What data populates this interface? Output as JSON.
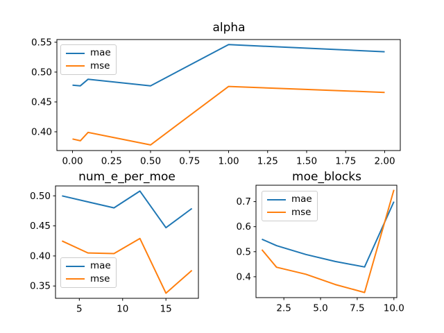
{
  "colors": {
    "mae": "#1f77b4",
    "mse": "#ff7f0e",
    "axis": "#000000",
    "legend_border": "#cccccc",
    "background": "#ffffff",
    "text": "#000000"
  },
  "chart_data": [
    {
      "id": "alpha",
      "type": "line",
      "title": "alpha",
      "x": [
        0.0,
        0.05,
        0.1,
        0.5,
        1.0,
        2.0
      ],
      "series": [
        {
          "name": "mae",
          "color": "#1f77b4",
          "values": [
            0.478,
            0.477,
            0.488,
            0.477,
            0.546,
            0.534
          ]
        },
        {
          "name": "mse",
          "color": "#ff7f0e",
          "values": [
            0.388,
            0.385,
            0.399,
            0.378,
            0.476,
            0.466
          ]
        }
      ],
      "xlim": [
        -0.1,
        2.1
      ],
      "ylim": [
        0.3686,
        0.5545
      ],
      "xticks": [
        0.0,
        0.25,
        0.5,
        0.75,
        1.0,
        1.25,
        1.5,
        1.75,
        2.0
      ],
      "xtick_labels": [
        "0.00",
        "0.25",
        "0.50",
        "0.75",
        "1.00",
        "1.25",
        "1.50",
        "1.75",
        "2.00"
      ],
      "yticks": [
        0.4,
        0.45,
        0.5,
        0.55
      ],
      "ytick_labels": [
        "0.40",
        "0.45",
        "0.50",
        "0.55"
      ],
      "legend_loc": "upper left",
      "grid": false
    },
    {
      "id": "num_e_per_moe",
      "type": "line",
      "title": "num_e_per_moe",
      "x": [
        3,
        6,
        9,
        12,
        15,
        18
      ],
      "series": [
        {
          "name": "mae",
          "color": "#1f77b4",
          "values": [
            0.5,
            0.49,
            0.48,
            0.508,
            0.447,
            0.479
          ]
        },
        {
          "name": "mse",
          "color": "#ff7f0e",
          "values": [
            0.425,
            0.405,
            0.404,
            0.429,
            0.338,
            0.376
          ]
        }
      ],
      "xlim": [
        2.25,
        18.75
      ],
      "ylim": [
        0.3295,
        0.5165
      ],
      "xticks": [
        5,
        10,
        15
      ],
      "xtick_labels": [
        "5",
        "10",
        "15"
      ],
      "yticks": [
        0.35,
        0.4,
        0.45,
        0.5
      ],
      "ytick_labels": [
        "0.35",
        "0.40",
        "0.45",
        "0.50"
      ],
      "legend_loc": "lower left",
      "grid": false
    },
    {
      "id": "moe_blocks",
      "type": "line",
      "title": "moe_blocks",
      "x": [
        1,
        2,
        4,
        6,
        8,
        10
      ],
      "series": [
        {
          "name": "mae",
          "color": "#1f77b4",
          "values": [
            0.55,
            0.524,
            0.489,
            0.461,
            0.439,
            0.7
          ]
        },
        {
          "name": "mse",
          "color": "#ff7f0e",
          "values": [
            0.508,
            0.438,
            0.41,
            0.369,
            0.337,
            0.747
          ]
        }
      ],
      "xlim": [
        0.6,
        10.2
      ],
      "ylim": [
        0.3166,
        0.7654
      ],
      "xticks": [
        2.5,
        5.0,
        7.5,
        10.0
      ],
      "xtick_labels": [
        "2.5",
        "5.0",
        "7.5",
        "10.0"
      ],
      "yticks": [
        0.4,
        0.5,
        0.6,
        0.7
      ],
      "ytick_labels": [
        "0.4",
        "0.5",
        "0.6",
        "0.7"
      ],
      "legend_loc": "upper left",
      "grid": false
    }
  ]
}
